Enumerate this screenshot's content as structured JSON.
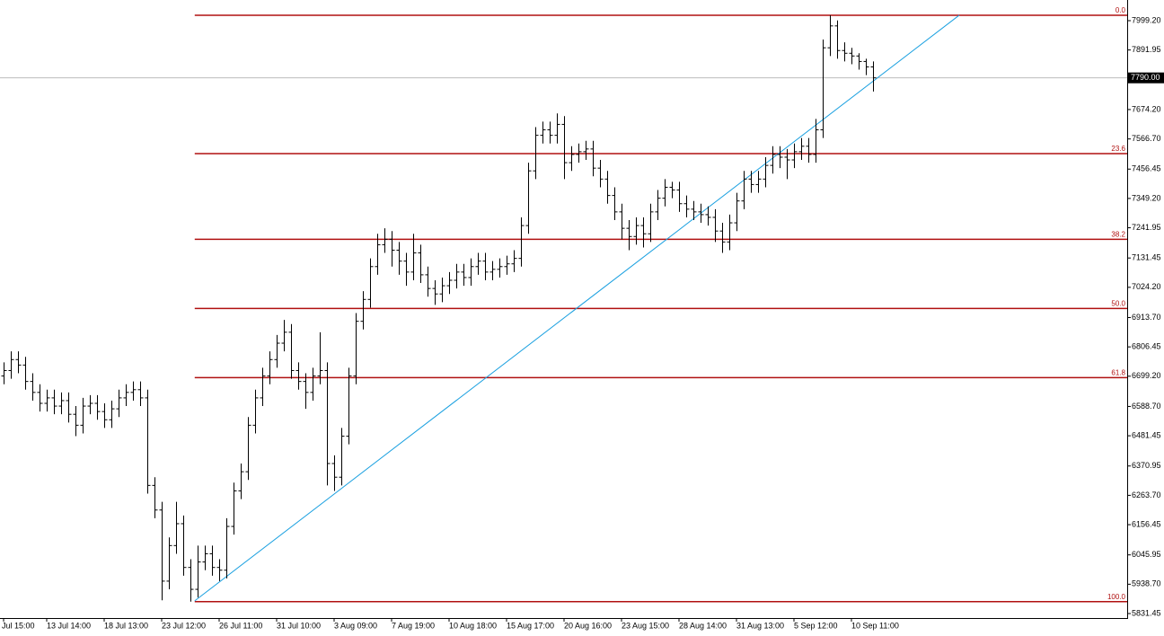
{
  "chart_data": {
    "type": "ohlc",
    "color": "#000000",
    "categories": [
      "Jul 15:00",
      null,
      null,
      null,
      null,
      null,
      "13 Jul 14:00",
      null,
      null,
      null,
      null,
      null,
      null,
      null,
      "18 Jul 13:00",
      null,
      null,
      null,
      null,
      null,
      null,
      null,
      "23 Jul 12:00",
      null,
      null,
      null,
      null,
      null,
      null,
      null,
      "26 Jul 11:00",
      null,
      null,
      null,
      null,
      null,
      null,
      null,
      "31 Jul 10:00",
      null,
      null,
      null,
      null,
      null,
      null,
      null,
      "3 Aug 09:00",
      null,
      null,
      null,
      null,
      null,
      null,
      null,
      "7 Aug 19:00",
      null,
      null,
      null,
      null,
      null,
      null,
      null,
      "10 Aug 18:00",
      null,
      null,
      null,
      null,
      null,
      null,
      null,
      "15 Aug 17:00",
      null,
      null,
      null,
      null,
      null,
      null,
      null,
      "20 Aug 16:00",
      null,
      null,
      null,
      null,
      null,
      null,
      null,
      "23 Aug 15:00",
      null,
      null,
      null,
      null,
      null,
      null,
      null,
      "28 Aug 14:00",
      null,
      null,
      null,
      null,
      null,
      null,
      null,
      "31 Aug 13:00",
      null,
      null,
      null,
      null,
      null,
      null,
      null,
      "5 Sep 12:00",
      null,
      null,
      null,
      null,
      null,
      null,
      null,
      "10 Sep 11:00",
      null,
      null,
      null
    ],
    "open": [
      6700,
      6720,
      6760,
      6740,
      6680,
      6640,
      6600,
      6620,
      6590,
      6610,
      6560,
      6520,
      6590,
      6600,
      6570,
      6540,
      6580,
      6620,
      6640,
      6650,
      6620,
      6300,
      6210,
      5950,
      6080,
      6160,
      6000,
      5920,
      6020,
      6050,
      6000,
      5990,
      6150,
      6280,
      6350,
      6520,
      6620,
      6700,
      6760,
      6820,
      6860,
      6720,
      6680,
      6640,
      6700,
      6720,
      6380,
      6330,
      6480,
      6700,
      6900,
      6980,
      7100,
      7180,
      7200,
      7160,
      7120,
      7080,
      7150,
      7070,
      7020,
      7000,
      7030,
      7050,
      7080,
      7060,
      7100,
      7120,
      7080,
      7090,
      7100,
      7110,
      7130,
      7250,
      7450,
      7580,
      7600,
      7580,
      7620,
      7480,
      7510,
      7520,
      7530,
      7460,
      7420,
      7360,
      7300,
      7240,
      7210,
      7250,
      7220,
      7300,
      7350,
      7390,
      7380,
      7330,
      7310,
      7300,
      7290,
      7280,
      7230,
      7190,
      7260,
      7340,
      7420,
      7400,
      7420,
      7470,
      7510,
      7500,
      7490,
      7520,
      7540,
      7510,
      7600,
      7900,
      7980,
      7890,
      7880,
      7870,
      7850,
      7830
    ],
    "high": [
      6750,
      6790,
      6790,
      6770,
      6710,
      6670,
      6650,
      6650,
      6640,
      6640,
      6590,
      6620,
      6630,
      6630,
      6600,
      6610,
      6650,
      6670,
      6680,
      6680,
      6650,
      6330,
      6240,
      6110,
      6240,
      6190,
      6030,
      6080,
      6080,
      6080,
      6030,
      6180,
      6310,
      6380,
      6550,
      6650,
      6730,
      6790,
      6850,
      6905,
      6890,
      6750,
      6710,
      6730,
      6860,
      6750,
      6410,
      6510,
      6730,
      6930,
      7010,
      7130,
      7220,
      7240,
      7230,
      7190,
      7150,
      7220,
      7180,
      7100,
      7050,
      7060,
      7080,
      7110,
      7110,
      7130,
      7150,
      7150,
      7120,
      7130,
      7140,
      7160,
      7280,
      7480,
      7610,
      7630,
      7630,
      7660,
      7650,
      7540,
      7550,
      7560,
      7560,
      7490,
      7450,
      7390,
      7330,
      7270,
      7280,
      7280,
      7330,
      7380,
      7420,
      7410,
      7410,
      7360,
      7340,
      7330,
      7320,
      7310,
      7260,
      7290,
      7370,
      7450,
      7450,
      7450,
      7500,
      7540,
      7540,
      7530,
      7550,
      7570,
      7570,
      7640,
      7930,
      8019,
      8000,
      7920,
      7900,
      7880,
      7860,
      7850
    ],
    "low": [
      6670,
      6690,
      6710,
      6650,
      6610,
      6570,
      6570,
      6560,
      6560,
      6530,
      6480,
      6490,
      6560,
      6540,
      6510,
      6510,
      6550,
      6590,
      6610,
      6590,
      6270,
      6180,
      5880,
      5920,
      6050,
      5970,
      5875,
      5890,
      5990,
      5970,
      5950,
      5960,
      6120,
      6250,
      6320,
      6490,
      6590,
      6670,
      6730,
      6790,
      6690,
      6650,
      6580,
      6610,
      6670,
      6300,
      6280,
      6300,
      6450,
      6670,
      6870,
      6950,
      7070,
      7150,
      7100,
      7070,
      7030,
      7050,
      7040,
      6990,
      6960,
      6970,
      7000,
      7020,
      7030,
      7030,
      7070,
      7050,
      7050,
      7060,
      7070,
      7080,
      7100,
      7220,
      7420,
      7550,
      7550,
      7550,
      7420,
      7450,
      7480,
      7490,
      7430,
      7390,
      7330,
      7270,
      7200,
      7160,
      7180,
      7170,
      7190,
      7270,
      7320,
      7350,
      7300,
      7280,
      7270,
      7260,
      7250,
      7190,
      7150,
      7160,
      7230,
      7310,
      7370,
      7370,
      7390,
      7440,
      7460,
      7420,
      7460,
      7490,
      7480,
      7480,
      7570,
      7870,
      7860,
      7850,
      7840,
      7820,
      7800,
      7740
    ],
    "close": [
      6720,
      6760,
      6740,
      6680,
      6640,
      6600,
      6620,
      6590,
      6610,
      6560,
      6520,
      6590,
      6600,
      6570,
      6540,
      6580,
      6620,
      6640,
      6650,
      6620,
      6300,
      6210,
      5950,
      6080,
      6160,
      6000,
      5920,
      6020,
      6050,
      6000,
      5990,
      6150,
      6280,
      6350,
      6520,
      6620,
      6700,
      6760,
      6820,
      6860,
      6720,
      6680,
      6640,
      6700,
      6720,
      6380,
      6330,
      6480,
      6700,
      6900,
      6980,
      7100,
      7180,
      7200,
      7160,
      7120,
      7080,
      7150,
      7070,
      7020,
      7000,
      7030,
      7050,
      7080,
      7060,
      7100,
      7120,
      7080,
      7090,
      7100,
      7110,
      7130,
      7250,
      7450,
      7580,
      7600,
      7580,
      7620,
      7480,
      7510,
      7520,
      7530,
      7460,
      7420,
      7360,
      7300,
      7240,
      7210,
      7250,
      7220,
      7300,
      7350,
      7390,
      7380,
      7330,
      7310,
      7300,
      7290,
      7280,
      7230,
      7190,
      7260,
      7340,
      7420,
      7400,
      7420,
      7470,
      7510,
      7500,
      7490,
      7520,
      7540,
      7510,
      7600,
      7900,
      7980,
      7890,
      7880,
      7870,
      7850,
      7830,
      7790
    ],
    "ylim": [
      5808.5,
      8074.7
    ],
    "yticks": [
      {
        "value": 7999.2,
        "label": "7999.20"
      },
      {
        "value": 7891.95,
        "label": "7891.95"
      },
      {
        "value": 7674.2,
        "label": "7674.20"
      },
      {
        "value": 7566.7,
        "label": "7566.70"
      },
      {
        "value": 7456.45,
        "label": "7456.45"
      },
      {
        "value": 7349.2,
        "label": "7349.20"
      },
      {
        "value": 7241.95,
        "label": "7241.95"
      },
      {
        "value": 7131.45,
        "label": "7131.45"
      },
      {
        "value": 7024.2,
        "label": "7024.20"
      },
      {
        "value": 6913.7,
        "label": "6913.70"
      },
      {
        "value": 6806.45,
        "label": "6806.45"
      },
      {
        "value": 6699.2,
        "label": "6699.20"
      },
      {
        "value": 6588.7,
        "label": "6588.70"
      },
      {
        "value": 6481.45,
        "label": "6481.45"
      },
      {
        "value": 6370.95,
        "label": "6370.95"
      },
      {
        "value": 6263.7,
        "label": "6263.70"
      },
      {
        "value": 6156.45,
        "label": "6156.45"
      },
      {
        "value": 6045.95,
        "label": "6045.95"
      },
      {
        "value": 5938.7,
        "label": "5938.70"
      },
      {
        "value": 5831.45,
        "label": "5831.45"
      }
    ],
    "current_price": {
      "value": 7790,
      "label": "7790.00"
    },
    "fibonacci": {
      "start": 26.6,
      "color": "#b01010",
      "levels": [
        {
          "label": "0.0",
          "value": 8019
        },
        {
          "label": "23.6",
          "value": 7513
        },
        {
          "label": "38.2",
          "value": 7200
        },
        {
          "label": "50.0",
          "value": 6947
        },
        {
          "label": "61.8",
          "value": 6694
        },
        {
          "label": "100.0",
          "value": 5875
        }
      ]
    },
    "trendline": {
      "x": [
        26.6,
        133
      ],
      "values": [
        5878,
        8019
      ],
      "color": "#1aa0e0"
    }
  }
}
